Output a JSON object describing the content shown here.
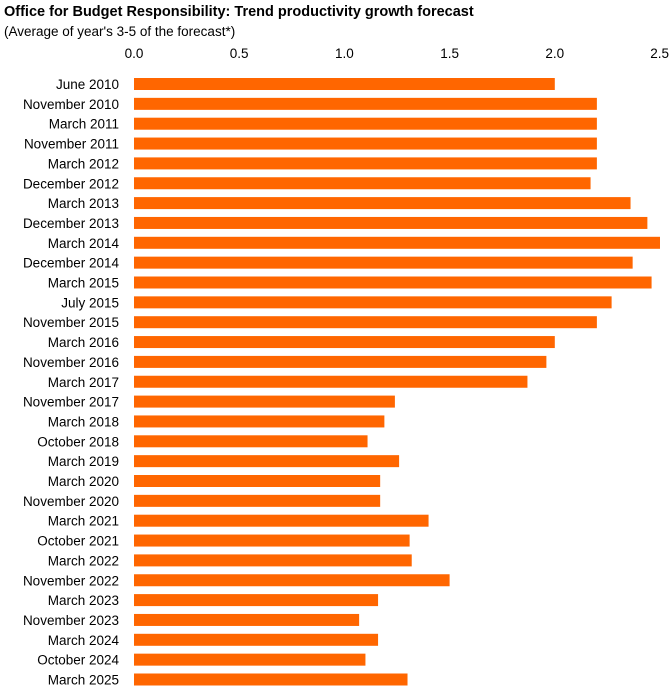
{
  "chart_data": {
    "type": "bar",
    "orientation": "horizontal",
    "title": "Office for Budget Responsibility: Trend productivity growth forecast",
    "subtitle": "(Average of year's 3-5 of the forecast*)",
    "xlabel": "",
    "ylabel": "",
    "xlim": [
      0,
      2.5
    ],
    "xticks": [
      "0.0",
      "0.5",
      "1.0",
      "1.5",
      "2.0",
      "2.5"
    ],
    "grid": false,
    "bar_color": "#FF6600",
    "categories": [
      "June 2010",
      "November 2010",
      "March 2011",
      "November 2011",
      "March 2012",
      "December 2012",
      "March 2013",
      "December 2013",
      "March 2014",
      "December 2014",
      "March 2015",
      "July 2015",
      "November 2015",
      "March 2016",
      "November 2016",
      "March 2017",
      "November 2017",
      "March 2018",
      "October 2018",
      "March 2019",
      "March 2020",
      "November 2020",
      "March 2021",
      "October 2021",
      "March 2022",
      "November 2022",
      "March 2023",
      "November 2023",
      "March 2024",
      "October 2024",
      "March 2025"
    ],
    "values": [
      2.0,
      2.2,
      2.2,
      2.2,
      2.2,
      2.17,
      2.36,
      2.44,
      2.5,
      2.37,
      2.46,
      2.27,
      2.2,
      2.0,
      1.96,
      1.87,
      1.24,
      1.19,
      1.11,
      1.26,
      1.17,
      1.17,
      1.4,
      1.31,
      1.32,
      1.5,
      1.16,
      1.07,
      1.16,
      1.1,
      1.3
    ]
  }
}
